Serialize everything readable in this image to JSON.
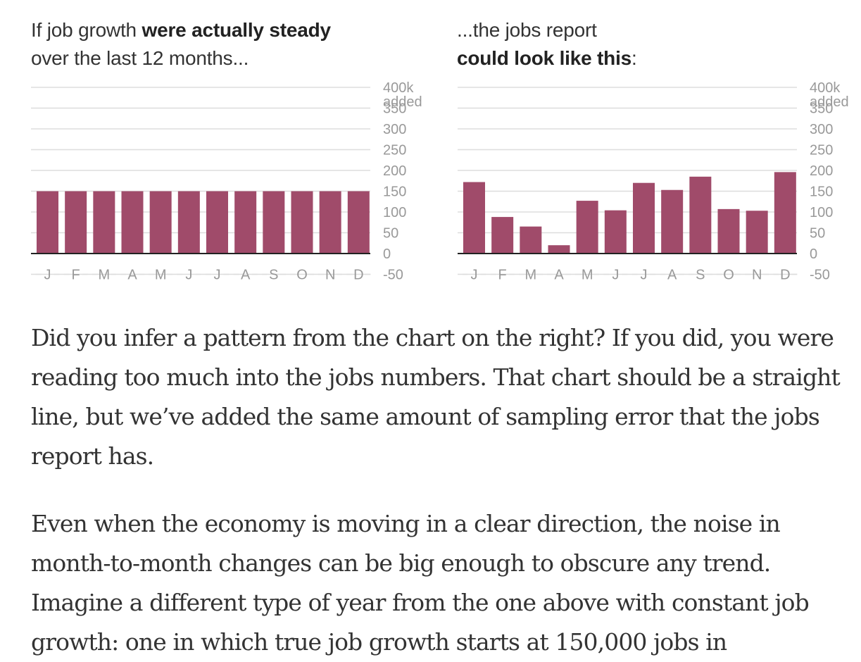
{
  "charts": [
    {
      "title_regular": "If job growth ",
      "title_bold": "were actually steady",
      "title_line2": "over the last 12 months..."
    },
    {
      "title_line1": "...the jobs report",
      "title_bold": "could look like this",
      "title_after": ":"
    }
  ],
  "colors": {
    "bar": "#a04b6a",
    "grid": "#dddddd",
    "axis": "#222222",
    "tick": "#999999"
  },
  "chart_data": [
    {
      "type": "bar",
      "categories": [
        "J",
        "F",
        "M",
        "A",
        "M",
        "J",
        "J",
        "A",
        "S",
        "O",
        "N",
        "D"
      ],
      "values": [
        150,
        150,
        150,
        150,
        150,
        150,
        150,
        150,
        150,
        150,
        150,
        150
      ],
      "y_ticks": [
        "400k",
        "350",
        "300",
        "250",
        "200",
        "150",
        "100",
        "50",
        "0",
        "-50"
      ],
      "y_unit_label": "added",
      "ylim": [
        -50,
        400
      ],
      "grid": true
    },
    {
      "type": "bar",
      "categories": [
        "J",
        "F",
        "M",
        "A",
        "M",
        "J",
        "J",
        "A",
        "S",
        "O",
        "N",
        "D"
      ],
      "values": [
        172,
        88,
        65,
        20,
        127,
        104,
        170,
        153,
        185,
        107,
        103,
        196
      ],
      "y_ticks": [
        "400k",
        "350",
        "300",
        "250",
        "200",
        "150",
        "100",
        "50",
        "0",
        "-50"
      ],
      "y_unit_label": "added",
      "ylim": [
        -50,
        400
      ],
      "grid": true
    }
  ],
  "paragraphs": [
    "Did you infer a pattern from the chart on the right? If you did, you were reading too much into the jobs numbers. That chart should be a straight line, but we’ve added the same amount of sampling error that the jobs report has.",
    "Even when the economy is moving in a clear direction, the noise in month-to-month changes can be big enough to obscure any trend. Imagine a different type of year from the one above with constant job growth: one in which true job growth starts at 150,000 jobs in"
  ]
}
